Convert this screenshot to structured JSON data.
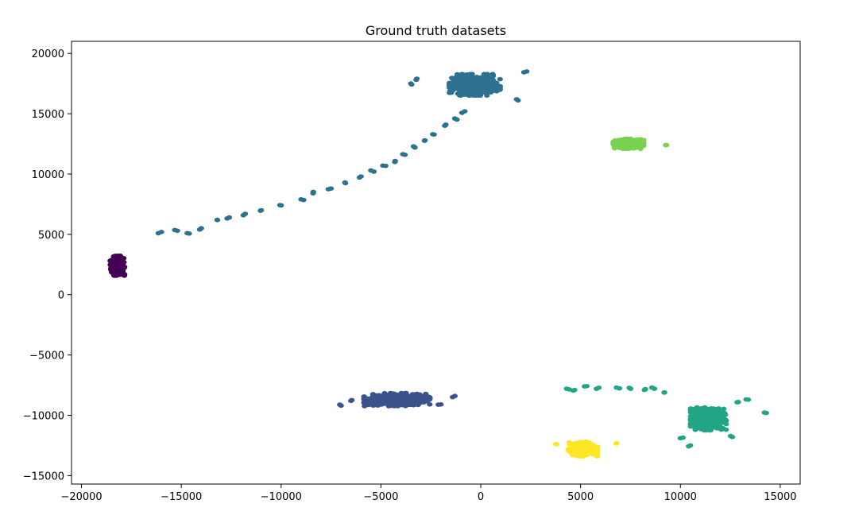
{
  "chart_data": {
    "type": "scatter",
    "title": "Ground truth datasets",
    "xlabel": "",
    "ylabel": "",
    "xlim": [
      -20500,
      16000
    ],
    "ylim": [
      -15700,
      21000
    ],
    "xticks": [
      -20000,
      -15000,
      -10000,
      -5000,
      0,
      5000,
      10000,
      15000
    ],
    "xtick_labels": [
      "−20000",
      "−15000",
      "−10000",
      "−5000",
      "0",
      "5000",
      "10000",
      "15000"
    ],
    "yticks": [
      -15000,
      -10000,
      -5000,
      0,
      5000,
      10000,
      15000,
      20000
    ],
    "ytick_labels": [
      "−15000",
      "−10000",
      "−5000",
      "0",
      "5000",
      "10000",
      "15000",
      "20000"
    ],
    "grid": false,
    "legend": "none",
    "colormap": "viridis",
    "clusters": [
      {
        "color": "#440154",
        "center": [
          -18200,
          2400
        ],
        "spread": [
          280,
          650
        ],
        "count": 320,
        "trail": []
      },
      {
        "color": "#3b528b",
        "center": [
          -4200,
          -8700
        ],
        "spread": [
          1300,
          430
        ],
        "count": 520,
        "trail": [
          [
            -7000,
            -9200
          ],
          [
            -6500,
            -8800
          ],
          [
            -2000,
            -9100
          ],
          [
            -1300,
            -8400
          ]
        ]
      },
      {
        "color": "#2c728e",
        "center": [
          -300,
          17400
        ],
        "spread": [
          1000,
          700
        ],
        "count": 480,
        "trail": [
          [
            -16000,
            5200
          ],
          [
            -15200,
            5300
          ],
          [
            -14700,
            5100
          ],
          [
            -14000,
            5500
          ],
          [
            -13200,
            6200
          ],
          [
            -12600,
            6400
          ],
          [
            -11800,
            6700
          ],
          [
            -11000,
            7000
          ],
          [
            -10000,
            7400
          ],
          [
            -9000,
            7900
          ],
          [
            -8400,
            8400
          ],
          [
            -7500,
            8800
          ],
          [
            -6800,
            9300
          ],
          [
            -6000,
            9800
          ],
          [
            -5500,
            10300
          ],
          [
            -4900,
            10700
          ],
          [
            -4300,
            11000
          ],
          [
            -3800,
            11600
          ],
          [
            -3300,
            12200
          ],
          [
            -2800,
            12800
          ],
          [
            -2400,
            13300
          ],
          [
            -1800,
            14000
          ],
          [
            -1300,
            14600
          ],
          [
            -800,
            15200
          ],
          [
            -3500,
            17500
          ],
          [
            -3200,
            17900
          ],
          [
            2300,
            18500
          ],
          [
            1800,
            16200
          ]
        ]
      },
      {
        "color": "#21a585",
        "center": [
          11400,
          -10300
        ],
        "spread": [
          700,
          750
        ],
        "count": 480,
        "trail": [
          [
            4300,
            -7800
          ],
          [
            4700,
            -7900
          ],
          [
            5200,
            -7600
          ],
          [
            5800,
            -7800
          ],
          [
            6800,
            -7700
          ],
          [
            7500,
            -7800
          ],
          [
            8200,
            -7900
          ],
          [
            8700,
            -7800
          ],
          [
            9200,
            -8100
          ],
          [
            12900,
            -8900
          ],
          [
            13400,
            -8700
          ],
          [
            14300,
            -9800
          ],
          [
            10000,
            -11900
          ],
          [
            10500,
            -12500
          ],
          [
            12600,
            -11800
          ]
        ]
      },
      {
        "color": "#7ad151",
        "center": [
          7400,
          12500
        ],
        "spread": [
          600,
          330
        ],
        "count": 320,
        "trail": [
          [
            9300,
            12400
          ]
        ]
      },
      {
        "color": "#fde725",
        "center": [
          5100,
          -12800
        ],
        "spread": [
          580,
          480
        ],
        "count": 380,
        "trail": [
          [
            3800,
            -12400
          ],
          [
            6800,
            -12300
          ]
        ]
      }
    ]
  }
}
